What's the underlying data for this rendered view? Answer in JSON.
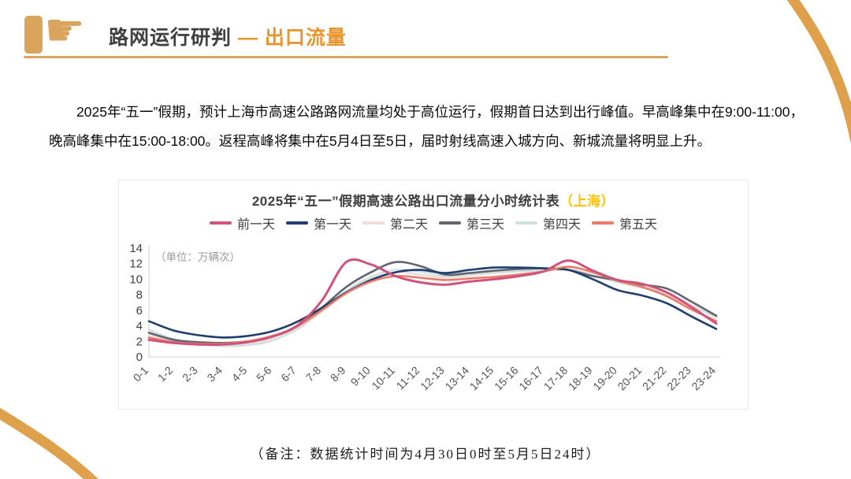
{
  "header": {
    "icon": "pointing-hand-icon",
    "title_main": "路网运行研判",
    "separator": "—",
    "title_accent": "出口流量"
  },
  "intro": {
    "text": "2025年“五一”假期，预计上海市高速公路路网流量均处于高位运行，假期首日达到出行峰值。早高峰集中在9:00-11:00，晚高峰集中在15:00-18:00。返程高峰将集中在5月4日至5日，届时射线高速入城方向、新城流量将明显上升。"
  },
  "chart_data": {
    "type": "line",
    "title": "2025年“五一”假期高速公路出口流量分小时统计表",
    "title_accent": "（上海）",
    "unit_label": "（单位：万辆次）",
    "xlabel": "",
    "ylabel": "",
    "ylim": [
      0,
      14
    ],
    "yticks": [
      0,
      2,
      4,
      6,
      8,
      10,
      12,
      14
    ],
    "grid": false,
    "legend_position": "top",
    "categories": [
      "0-1",
      "1-2",
      "2-3",
      "3-4",
      "4-5",
      "5-6",
      "6-7",
      "7-8",
      "8-9",
      "9-10",
      "10-11",
      "11-12",
      "12-13",
      "13-14",
      "14-15",
      "15-16",
      "16-17",
      "17-18",
      "18-19",
      "19-20",
      "20-21",
      "21-22",
      "22-23",
      "23-24"
    ],
    "series": [
      {
        "name": "前一天",
        "color": "#D0537B",
        "values": [
          2.2,
          1.8,
          1.6,
          1.6,
          1.9,
          2.6,
          4.0,
          7.2,
          12.2,
          11.9,
          10.4,
          9.6,
          9.3,
          9.7,
          10.0,
          10.4,
          11.0,
          12.4,
          11.1,
          9.9,
          9.4,
          8.3,
          6.4,
          4.3
        ]
      },
      {
        "name": "第一天",
        "color": "#1F3E6E",
        "values": [
          4.6,
          3.4,
          2.8,
          2.5,
          2.7,
          3.3,
          4.5,
          6.3,
          8.3,
          9.9,
          10.9,
          11.2,
          10.8,
          11.2,
          11.5,
          11.5,
          11.4,
          11.2,
          10.0,
          8.6,
          7.9,
          6.9,
          5.2,
          3.6
        ]
      },
      {
        "name": "第二天",
        "color": "#F0DBDA",
        "values": [
          2.9,
          2.0,
          1.6,
          1.4,
          1.6,
          2.2,
          3.5,
          5.8,
          8.3,
          10.0,
          10.9,
          10.6,
          10.2,
          10.5,
          10.8,
          11.0,
          11.2,
          11.3,
          10.6,
          9.7,
          9.0,
          8.1,
          6.7,
          5.0
        ]
      },
      {
        "name": "第三天",
        "color": "#606570",
        "values": [
          3.1,
          2.2,
          1.9,
          1.8,
          2.0,
          2.6,
          4.0,
          6.3,
          9.0,
          10.9,
          12.2,
          11.7,
          10.6,
          10.8,
          11.1,
          11.3,
          11.4,
          11.2,
          10.4,
          9.9,
          9.3,
          8.8,
          7.1,
          5.3
        ]
      },
      {
        "name": "第四天",
        "color": "#CDE2DE",
        "values": [
          3.5,
          2.3,
          1.7,
          1.4,
          1.5,
          2.1,
          3.6,
          5.9,
          8.5,
          10.3,
          11.2,
          11.0,
          10.4,
          10.7,
          10.9,
          11.0,
          11.1,
          11.2,
          10.5,
          9.6,
          8.9,
          8.0,
          6.5,
          5.2
        ]
      },
      {
        "name": "第五天",
        "color": "#EA7A67",
        "values": [
          2.5,
          1.9,
          1.7,
          1.7,
          2.0,
          2.7,
          3.9,
          6.0,
          8.2,
          9.7,
          10.4,
          10.2,
          9.9,
          10.1,
          10.3,
          10.6,
          11.0,
          11.6,
          10.9,
          9.8,
          9.0,
          7.8,
          6.1,
          4.6
        ]
      }
    ]
  },
  "footnote": {
    "text": "（备注：数据统计时间为4月30日0时至5月5日24时）"
  },
  "colors": {
    "accent_orange": "#E7962F",
    "underline_tan": "#D9A45C",
    "corner_arc": "#DFA04C",
    "shanghai_gold": "#FFC000",
    "axis_gray": "#D9D9D9",
    "label_gray": "#404040",
    "unit_gray": "#9A9A9A"
  }
}
